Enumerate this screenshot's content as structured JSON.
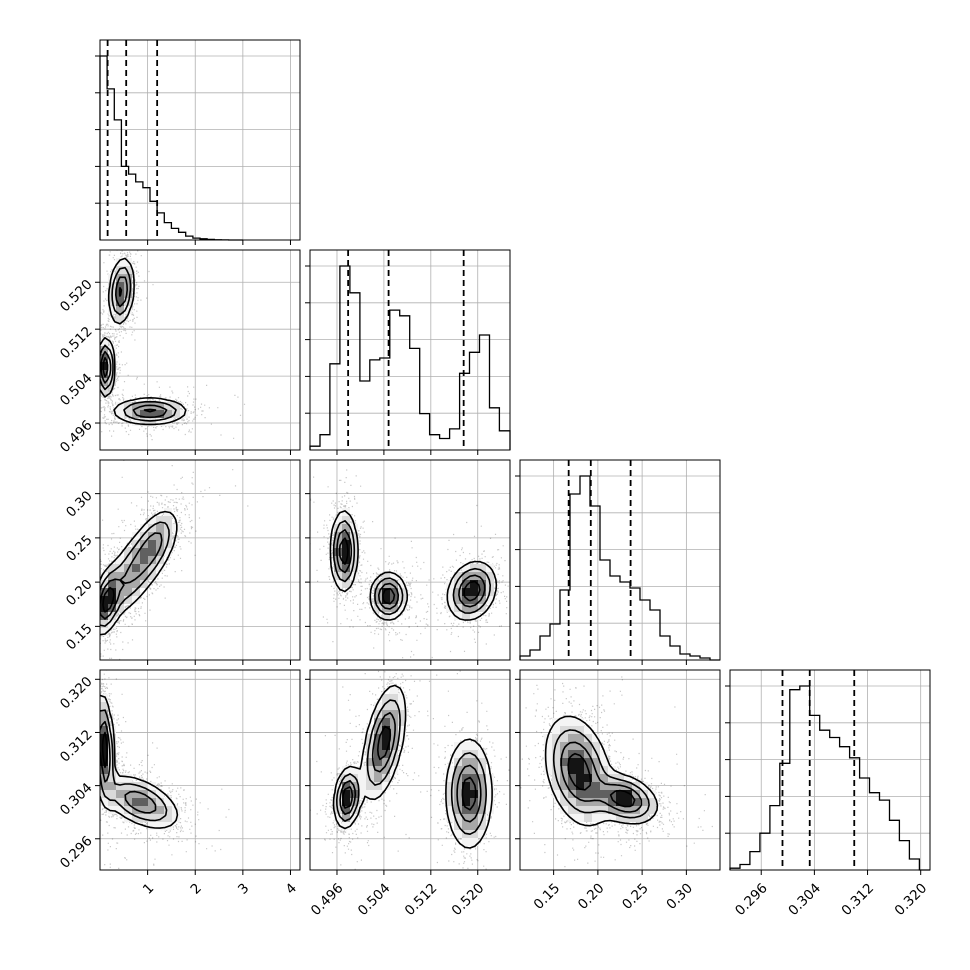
{
  "chart_data": {
    "type": "corner",
    "params": [
      {
        "ticks": [
          1,
          2,
          3,
          4
        ],
        "tick_labels": [
          "1",
          "2",
          "3",
          "4"
        ],
        "range": [
          0.0,
          4.2
        ],
        "quantiles": [
          0.16,
          0.55,
          1.2
        ],
        "hist": {
          "edges": [
            0.0,
            0.15,
            0.3,
            0.45,
            0.6,
            0.75,
            0.9,
            1.05,
            1.2,
            1.35,
            1.5,
            1.65,
            1.8,
            1.95,
            2.1,
            2.25,
            2.4,
            2.55,
            2.7,
            2.85,
            3.0
          ],
          "counts": [
            95,
            78,
            62,
            38,
            34,
            30,
            27,
            20,
            14,
            9,
            6,
            4,
            2,
            1,
            0.6,
            0.3,
            0.1,
            0.05,
            0,
            0
          ]
        }
      },
      {
        "ticks": [
          0.496,
          0.504,
          0.512,
          0.52
        ],
        "tick_labels": [
          "0.496",
          "0.504",
          "0.512",
          "0.520"
        ],
        "range": [
          0.4914,
          0.5255
        ],
        "quantiles": [
          0.4979,
          0.5048,
          0.5176
        ],
        "hist": {
          "edges": [
            0.4914,
            0.4931,
            0.4948,
            0.4965,
            0.4982,
            0.4999,
            0.5016,
            0.5033,
            0.505,
            0.5067,
            0.5084,
            0.5101,
            0.5118,
            0.5135,
            0.5152,
            0.5169,
            0.5186,
            0.5203,
            0.522,
            0.5237,
            0.5255
          ],
          "counts": [
            2,
            8,
            45,
            96,
            82,
            36,
            47,
            48,
            73,
            70,
            53,
            19,
            8,
            6,
            11,
            40,
            51,
            60,
            22,
            10
          ]
        }
      },
      {
        "ticks": [
          0.15,
          0.2,
          0.25,
          0.3
        ],
        "tick_labels": [
          "0.15",
          "0.20",
          "0.25",
          "0.30"
        ],
        "range": [
          0.112,
          0.338
        ],
        "quantiles": [
          0.167,
          0.192,
          0.237
        ],
        "hist": {
          "edges": [
            0.112,
            0.1233,
            0.1346,
            0.1459,
            0.1572,
            0.1685,
            0.1798,
            0.1911,
            0.2024,
            0.2137,
            0.225,
            0.2363,
            0.2476,
            0.2589,
            0.2702,
            0.2815,
            0.2928,
            0.3041,
            0.3154,
            0.3267,
            0.338
          ],
          "counts": [
            2,
            5,
            12,
            18,
            35,
            83,
            92,
            77,
            50,
            42,
            39,
            36,
            30,
            25,
            12,
            7,
            3,
            2,
            1,
            0
          ]
        }
      },
      {
        "ticks": [
          0.296,
          0.304,
          0.312,
          0.32
        ],
        "tick_labels": [
          "0.296",
          "0.304",
          "0.312",
          "0.320"
        ],
        "range": [
          0.2913,
          0.3214
        ],
        "quantiles": [
          0.2992,
          0.3033,
          0.31
        ],
        "hist": {
          "edges": [
            0.2913,
            0.2928,
            0.2943,
            0.2958,
            0.2973,
            0.2988,
            0.3003,
            0.3018,
            0.3033,
            0.3048,
            0.3063,
            0.3078,
            0.3093,
            0.3108,
            0.3123,
            0.3138,
            0.3153,
            0.3168,
            0.3183,
            0.3198,
            0.3214
          ],
          "counts": [
            1,
            3,
            10,
            20,
            35,
            58,
            98,
            100,
            84,
            76,
            72,
            67,
            61,
            50,
            42,
            38,
            27,
            16,
            6,
            0
          ]
        }
      }
    ],
    "joint": [
      {
        "row": 1,
        "col": 0,
        "modes": [
          {
            "x": 0.45,
            "y": 0.5185,
            "sx": 0.13,
            "sy": 0.0028,
            "rho": 0.2,
            "w": 1.0
          },
          {
            "x": 0.12,
            "y": 0.5055,
            "sx": 0.09,
            "sy": 0.0024,
            "rho": 0.0,
            "w": 1.2
          },
          {
            "x": 1.05,
            "y": 0.498,
            "sx": 0.38,
            "sy": 0.0011,
            "rho": 0.0,
            "w": 1.0
          }
        ]
      },
      {
        "row": 2,
        "col": 0,
        "modes": [
          {
            "x": 0.15,
            "y": 0.178,
            "sx": 0.14,
            "sy": 0.018,
            "rho": 0.4,
            "w": 1.3
          },
          {
            "x": 0.75,
            "y": 0.215,
            "sx": 0.42,
            "sy": 0.03,
            "rho": 0.75,
            "w": 1.0
          },
          {
            "x": 1.15,
            "y": 0.245,
            "sx": 0.22,
            "sy": 0.018,
            "rho": 0.5,
            "w": 0.6
          }
        ]
      },
      {
        "row": 2,
        "col": 1,
        "modes": [
          {
            "x": 0.4972,
            "y": 0.235,
            "sx": 0.0011,
            "sy": 0.022,
            "rho": 0.0,
            "w": 1.0
          },
          {
            "x": 0.5048,
            "y": 0.184,
            "sx": 0.0015,
            "sy": 0.013,
            "rho": 0.0,
            "w": 1.0
          },
          {
            "x": 0.519,
            "y": 0.19,
            "sx": 0.002,
            "sy": 0.016,
            "rho": 0.2,
            "w": 1.0
          }
        ]
      },
      {
        "row": 3,
        "col": 0,
        "modes": [
          {
            "x": 0.1,
            "y": 0.3095,
            "sx": 0.1,
            "sy": 0.004,
            "rho": -0.3,
            "w": 1.3
          },
          {
            "x": 0.85,
            "y": 0.3015,
            "sx": 0.4,
            "sy": 0.002,
            "rho": -0.5,
            "w": 1.0
          }
        ]
      },
      {
        "row": 3,
        "col": 1,
        "modes": [
          {
            "x": 0.4978,
            "y": 0.3022,
            "sx": 0.0011,
            "sy": 0.0022,
            "rho": 0.2,
            "w": 1.0
          },
          {
            "x": 0.504,
            "y": 0.3105,
            "sx": 0.0018,
            "sy": 0.0042,
            "rho": 0.5,
            "w": 0.9
          },
          {
            "x": 0.5185,
            "y": 0.3028,
            "sx": 0.0019,
            "sy": 0.004,
            "rho": 0.0,
            "w": 0.9
          }
        ]
      },
      {
        "row": 3,
        "col": 2,
        "modes": [
          {
            "x": 0.178,
            "y": 0.3062,
            "sx": 0.018,
            "sy": 0.004,
            "rho": -0.3,
            "w": 1.0
          },
          {
            "x": 0.23,
            "y": 0.302,
            "sx": 0.018,
            "sy": 0.0018,
            "rho": -0.3,
            "w": 1.0
          }
        ]
      }
    ],
    "grid": true
  }
}
